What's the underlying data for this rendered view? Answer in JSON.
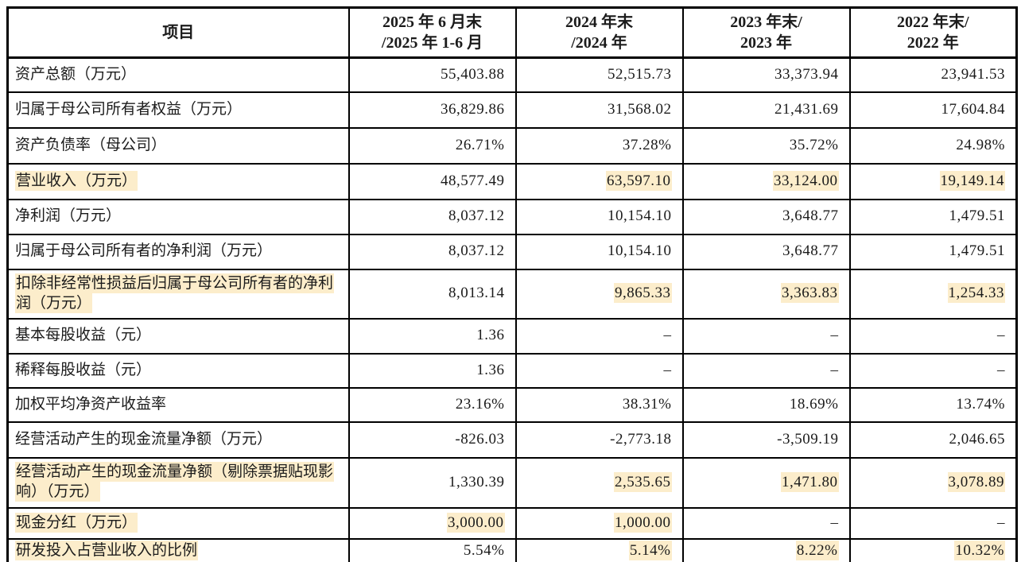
{
  "highlight_color": "#FCEDCB",
  "table": {
    "header": {
      "item_label": "项目",
      "columns": [
        {
          "line1": "2025 年 6 月末",
          "line2": "/2025 年 1-6 月"
        },
        {
          "line1": "2024 年末",
          "line2": "/2024 年"
        },
        {
          "line1": "2023 年末/",
          "line2": "2023 年"
        },
        {
          "line1": "2022 年末/",
          "line2": "2022 年"
        }
      ]
    },
    "rows": [
      {
        "label": "资产总额（万元）",
        "label_hl": false,
        "values": [
          "55,403.88",
          "52,515.73",
          "33,373.94",
          "23,941.53"
        ],
        "value_hl": [
          false,
          false,
          false,
          false
        ]
      },
      {
        "label": "归属于母公司所有者权益（万元）",
        "label_hl": false,
        "values": [
          "36,829.86",
          "31,568.02",
          "21,431.69",
          "17,604.84"
        ],
        "value_hl": [
          false,
          false,
          false,
          false
        ]
      },
      {
        "label": "资产负债率（母公司）",
        "label_hl": false,
        "values": [
          "26.71%",
          "37.28%",
          "35.72%",
          "24.98%"
        ],
        "value_hl": [
          false,
          false,
          false,
          false
        ]
      },
      {
        "label": "营业收入（万元）",
        "label_hl": true,
        "values": [
          "48,577.49",
          "63,597.10",
          "33,124.00",
          "19,149.14"
        ],
        "value_hl": [
          false,
          true,
          true,
          true
        ]
      },
      {
        "label": "净利润（万元）",
        "label_hl": false,
        "values": [
          "8,037.12",
          "10,154.10",
          "3,648.77",
          "1,479.51"
        ],
        "value_hl": [
          false,
          false,
          false,
          false
        ]
      },
      {
        "label": "归属于母公司所有者的净利润（万元）",
        "label_hl": false,
        "values": [
          "8,037.12",
          "10,154.10",
          "3,648.77",
          "1,479.51"
        ],
        "value_hl": [
          false,
          false,
          false,
          false
        ]
      },
      {
        "label": "扣除非经常性损益后归属于母公司所有者的净利润（万元）",
        "label_hl": true,
        "values": [
          "8,013.14",
          "9,865.33",
          "3,363.83",
          "1,254.33"
        ],
        "value_hl": [
          false,
          true,
          true,
          true
        ]
      },
      {
        "label": "基本每股收益（元）",
        "label_hl": false,
        "values": [
          "1.36",
          "–",
          "–",
          "–"
        ],
        "value_hl": [
          false,
          false,
          false,
          false
        ]
      },
      {
        "label": "稀释每股收益（元）",
        "label_hl": false,
        "values": [
          "1.36",
          "–",
          "–",
          "–"
        ],
        "value_hl": [
          false,
          false,
          false,
          false
        ]
      },
      {
        "label": "加权平均净资产收益率",
        "label_hl": false,
        "values": [
          "23.16%",
          "38.31%",
          "18.69%",
          "13.74%"
        ],
        "value_hl": [
          false,
          false,
          false,
          false
        ]
      },
      {
        "label": "经营活动产生的现金流量净额（万元）",
        "label_hl": false,
        "values": [
          "-826.03",
          "-2,773.18",
          "-3,509.19",
          "2,046.65"
        ],
        "value_hl": [
          false,
          false,
          false,
          false
        ]
      },
      {
        "label": "经营活动产生的现金流量净额（剔除票据贴现影响）（万元）",
        "label_hl": true,
        "values": [
          "1,330.39",
          "2,535.65",
          "1,471.80",
          "3,078.89"
        ],
        "value_hl": [
          false,
          true,
          true,
          true
        ]
      },
      {
        "label": "现金分红（万元）",
        "label_hl": true,
        "values": [
          "3,000.00",
          "1,000.00",
          "–",
          "–"
        ],
        "value_hl": [
          true,
          true,
          false,
          false
        ]
      },
      {
        "label": "研发投入占营业收入的比例",
        "label_hl": true,
        "values": [
          "5.54%",
          "5.14%",
          "8.22%",
          "10.32%"
        ],
        "value_hl": [
          false,
          true,
          true,
          true
        ]
      }
    ]
  }
}
